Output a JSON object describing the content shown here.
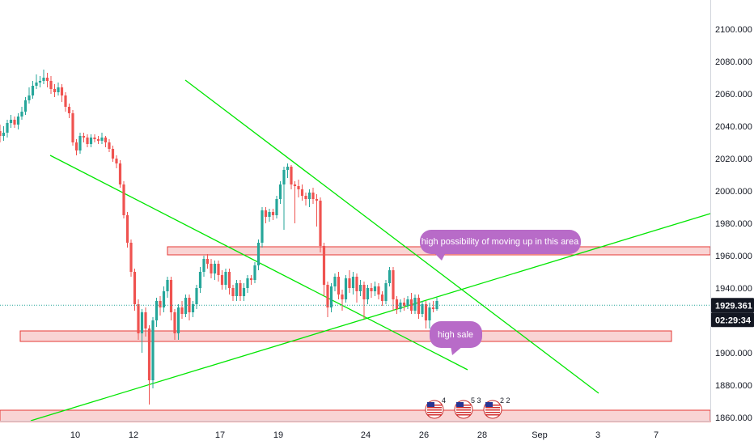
{
  "chart_data": {
    "type": "candlestick",
    "y_axis": {
      "ylim": [
        1835,
        2100
      ],
      "ticks": [
        "2100.000",
        "2080.000",
        "2060.000",
        "2040.000",
        "2020.000",
        "2000.000",
        "1980.000",
        "1960.000",
        "1940.000",
        "1920.000",
        "1900.000",
        "1880.000",
        "1860.000"
      ]
    },
    "x_axis": {
      "ticks": [
        "10",
        "12",
        "17",
        "19",
        "24",
        "26",
        "28",
        "Sep",
        "3",
        "7"
      ]
    },
    "current_price": "1929.361",
    "countdown": "02:29:34",
    "colors": {
      "up": "#26a69a",
      "down": "#ef5350",
      "trendline": "#00e600",
      "zone_fill": "#f9d4d4",
      "zone_border": "#e53935",
      "callout": "#b86bc8",
      "badge": "#131722"
    },
    "callouts": [
      {
        "text": "high possibility of moving up in this area"
      },
      {
        "text": "high sale"
      }
    ],
    "events": [
      {
        "count": "4"
      },
      {
        "count": "5 3"
      },
      {
        "count": "2 2"
      }
    ],
    "candles": [
      [
        2037,
        2034,
        2041,
        2030
      ],
      [
        2034,
        2036,
        2040,
        2031
      ],
      [
        2036,
        2042,
        2044,
        2033
      ],
      [
        2042,
        2044,
        2047,
        2039
      ],
      [
        2044,
        2041,
        2046,
        2039
      ],
      [
        2041,
        2046,
        2048,
        2038
      ],
      [
        2046,
        2049,
        2052,
        2044
      ],
      [
        2049,
        2056,
        2058,
        2047
      ],
      [
        2056,
        2059,
        2064,
        2054
      ],
      [
        2059,
        2065,
        2068,
        2057
      ],
      [
        2065,
        2067,
        2072,
        2063
      ],
      [
        2067,
        2068,
        2071,
        2064
      ],
      [
        2068,
        2070,
        2075,
        2066
      ],
      [
        2070,
        2068,
        2073,
        2064
      ],
      [
        2068,
        2063,
        2071,
        2060
      ],
      [
        2063,
        2061,
        2066,
        2058
      ],
      [
        2061,
        2064,
        2067,
        2059
      ],
      [
        2064,
        2059,
        2066,
        2055
      ],
      [
        2059,
        2052,
        2061,
        2049
      ],
      [
        2052,
        2048,
        2054,
        2045
      ],
      [
        2048,
        2030,
        2050,
        2028
      ],
      [
        2030,
        2025,
        2032,
        2022
      ],
      [
        2025,
        2034,
        2036,
        2023
      ],
      [
        2034,
        2033,
        2036,
        2030
      ],
      [
        2033,
        2029,
        2035,
        2027
      ],
      [
        2029,
        2033,
        2035,
        2027
      ],
      [
        2033,
        2032,
        2035,
        2030
      ],
      [
        2032,
        2031,
        2034,
        2029
      ],
      [
        2031,
        2033,
        2036,
        2029
      ],
      [
        2033,
        2030,
        2034,
        2027
      ],
      [
        2030,
        2026,
        2032,
        2024
      ],
      [
        2026,
        2020,
        2028,
        2018
      ],
      [
        2020,
        2017,
        2022,
        2014
      ],
      [
        2017,
        2004,
        2019,
        2002
      ],
      [
        2004,
        1985,
        2006,
        1983
      ],
      [
        1985,
        1968,
        1987,
        1965
      ],
      [
        1968,
        1950,
        1970,
        1947
      ],
      [
        1950,
        1930,
        1952,
        1926
      ],
      [
        1930,
        1912,
        1933,
        1908
      ],
      [
        1912,
        1925,
        1927,
        1900
      ],
      [
        1925,
        1915,
        1928,
        1910
      ],
      [
        1915,
        1883,
        1917,
        1868
      ],
      [
        1883,
        1920,
        1922,
        1878
      ],
      [
        1920,
        1932,
        1934,
        1916
      ],
      [
        1932,
        1928,
        1935,
        1923
      ],
      [
        1928,
        1938,
        1941,
        1925
      ],
      [
        1938,
        1945,
        1947,
        1934
      ],
      [
        1945,
        1925,
        1947,
        1920
      ],
      [
        1925,
        1912,
        1927,
        1908
      ],
      [
        1912,
        1928,
        1930,
        1908
      ],
      [
        1928,
        1924,
        1932,
        1921
      ],
      [
        1924,
        1934,
        1936,
        1922
      ],
      [
        1934,
        1925,
        1936,
        1920
      ],
      [
        1925,
        1930,
        1932,
        1922
      ],
      [
        1930,
        1940,
        1942,
        1927
      ],
      [
        1940,
        1950,
        1953,
        1937
      ],
      [
        1950,
        1958,
        1960,
        1947
      ],
      [
        1958,
        1955,
        1961,
        1952
      ],
      [
        1955,
        1949,
        1958,
        1946
      ],
      [
        1949,
        1955,
        1957,
        1945
      ],
      [
        1955,
        1948,
        1957,
        1944
      ],
      [
        1948,
        1942,
        1951,
        1939
      ],
      [
        1942,
        1950,
        1952,
        1939
      ],
      [
        1950,
        1940,
        1952,
        1936
      ],
      [
        1940,
        1935,
        1942,
        1932
      ],
      [
        1935,
        1943,
        1945,
        1932
      ],
      [
        1943,
        1935,
        1945,
        1932
      ],
      [
        1935,
        1940,
        1943,
        1932
      ],
      [
        1940,
        1946,
        1948,
        1937
      ],
      [
        1946,
        1945,
        1948,
        1942
      ],
      [
        1945,
        1954,
        1956,
        1943
      ],
      [
        1954,
        1968,
        1970,
        1951
      ],
      [
        1968,
        1988,
        1990,
        1965
      ],
      [
        1988,
        1984,
        1990,
        1980
      ],
      [
        1984,
        1987,
        1989,
        1981
      ],
      [
        1987,
        1985,
        1989,
        1982
      ],
      [
        1985,
        1995,
        1997,
        1983
      ],
      [
        1995,
        2004,
        2006,
        1992
      ],
      [
        2004,
        2013,
        2015,
        1976
      ],
      [
        2013,
        2015,
        2017,
        2008
      ],
      [
        2015,
        2004,
        2016,
        2001
      ],
      [
        2004,
        2003,
        2006,
        1980
      ],
      [
        2003,
        2001,
        2007,
        1996
      ],
      [
        2001,
        1997,
        2004,
        1994
      ],
      [
        1997,
        1995,
        1999,
        1991
      ],
      [
        1995,
        1999,
        2001,
        1990
      ],
      [
        1999,
        1995,
        2002,
        1992
      ],
      [
        1995,
        1994,
        1998,
        1978
      ],
      [
        1994,
        1966,
        1996,
        1962
      ],
      [
        1966,
        1942,
        1968,
        1935
      ],
      [
        1942,
        1928,
        1944,
        1922
      ],
      [
        1928,
        1941,
        1943,
        1925
      ],
      [
        1941,
        1947,
        1949,
        1938
      ],
      [
        1947,
        1936,
        1950,
        1933
      ],
      [
        1936,
        1933,
        1939,
        1926
      ],
      [
        1933,
        1946,
        1948,
        1931
      ],
      [
        1946,
        1940,
        1951,
        1937
      ],
      [
        1940,
        1947,
        1950,
        1936
      ],
      [
        1947,
        1938,
        1949,
        1931
      ],
      [
        1938,
        1942,
        1945,
        1935
      ],
      [
        1942,
        1933,
        1944,
        1921
      ],
      [
        1933,
        1940,
        1942,
        1930
      ],
      [
        1940,
        1938,
        1943,
        1934
      ],
      [
        1938,
        1941,
        1944,
        1935
      ],
      [
        1941,
        1936,
        1943,
        1933
      ],
      [
        1936,
        1932,
        1938,
        1929
      ],
      [
        1932,
        1943,
        1945,
        1930
      ],
      [
        1943,
        1951,
        1953,
        1941
      ],
      [
        1951,
        1933,
        1953,
        1926
      ],
      [
        1933,
        1927,
        1935,
        1924
      ],
      [
        1927,
        1931,
        1933,
        1925
      ],
      [
        1931,
        1929,
        1934,
        1926
      ],
      [
        1929,
        1933,
        1935,
        1927
      ],
      [
        1933,
        1926,
        1937,
        1924
      ],
      [
        1926,
        1934,
        1936,
        1924
      ],
      [
        1934,
        1924,
        1936,
        1921
      ],
      [
        1924,
        1930,
        1932,
        1922
      ],
      [
        1930,
        1920,
        1932,
        1915
      ],
      [
        1920,
        1928,
        1931,
        1915
      ],
      [
        1928,
        1927,
        1932,
        1925
      ],
      [
        1927,
        1932,
        1934,
        1926
      ]
    ]
  }
}
